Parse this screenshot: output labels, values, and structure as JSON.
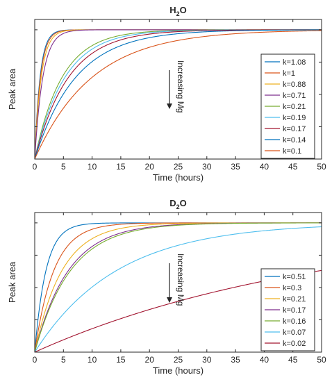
{
  "chart_data": [
    {
      "type": "line",
      "title_main": "H",
      "title_sub": "2",
      "title_rest": "O",
      "xlabel": "Time (hours)",
      "ylabel": "Peak area",
      "xlim": [
        0,
        50
      ],
      "ylim": [
        0,
        1.08
      ],
      "xticks": [
        "0",
        "5",
        "10",
        "15",
        "20",
        "25",
        "30",
        "35",
        "40",
        "45",
        "50"
      ],
      "plateau": 1.0,
      "annotation": "Increasing Mg",
      "legend_position": "right",
      "grid": false,
      "series": [
        {
          "name": "k=1.08",
          "k": 1.08,
          "color": "#0072BD"
        },
        {
          "name": "k=1",
          "k": 1.0,
          "color": "#D95319"
        },
        {
          "name": "k=0.88",
          "k": 0.88,
          "color": "#EDB120"
        },
        {
          "name": "k=0.71",
          "k": 0.71,
          "color": "#7E2F8E"
        },
        {
          "name": "k=0.21",
          "k": 0.21,
          "color": "#77AC30"
        },
        {
          "name": "k=0.19",
          "k": 0.19,
          "color": "#4DBEEE"
        },
        {
          "name": "k=0.17",
          "k": 0.17,
          "color": "#A2142F"
        },
        {
          "name": "k=0.14",
          "k": 0.14,
          "color": "#0072BD"
        },
        {
          "name": "k=0.1",
          "k": 0.1,
          "color": "#D95319"
        }
      ]
    },
    {
      "type": "line",
      "title_main": "D",
      "title_sub": "2",
      "title_rest": "O",
      "xlabel": "Time (hours)",
      "ylabel": "Peak area",
      "xlim": [
        0,
        50
      ],
      "ylim": [
        0,
        1.08
      ],
      "xticks": [
        "0",
        "5",
        "10",
        "15",
        "20",
        "25",
        "30",
        "35",
        "40",
        "45",
        "50"
      ],
      "plateau": 1.0,
      "annotation": "Increasing Mg",
      "legend_position": "right",
      "grid": false,
      "series": [
        {
          "name": "k=0.51",
          "k": 0.51,
          "color": "#0072BD"
        },
        {
          "name": "k=0.3",
          "k": 0.3,
          "color": "#D95319"
        },
        {
          "name": "k=0.21",
          "k": 0.21,
          "color": "#EDB120"
        },
        {
          "name": "k=0.17",
          "k": 0.17,
          "color": "#7E2F8E"
        },
        {
          "name": "k=0.16",
          "k": 0.16,
          "color": "#77AC30"
        },
        {
          "name": "k=0.07",
          "k": 0.07,
          "color": "#4DBEEE"
        },
        {
          "name": "k=0.02",
          "k": 0.02,
          "color": "#A2142F"
        }
      ]
    }
  ]
}
